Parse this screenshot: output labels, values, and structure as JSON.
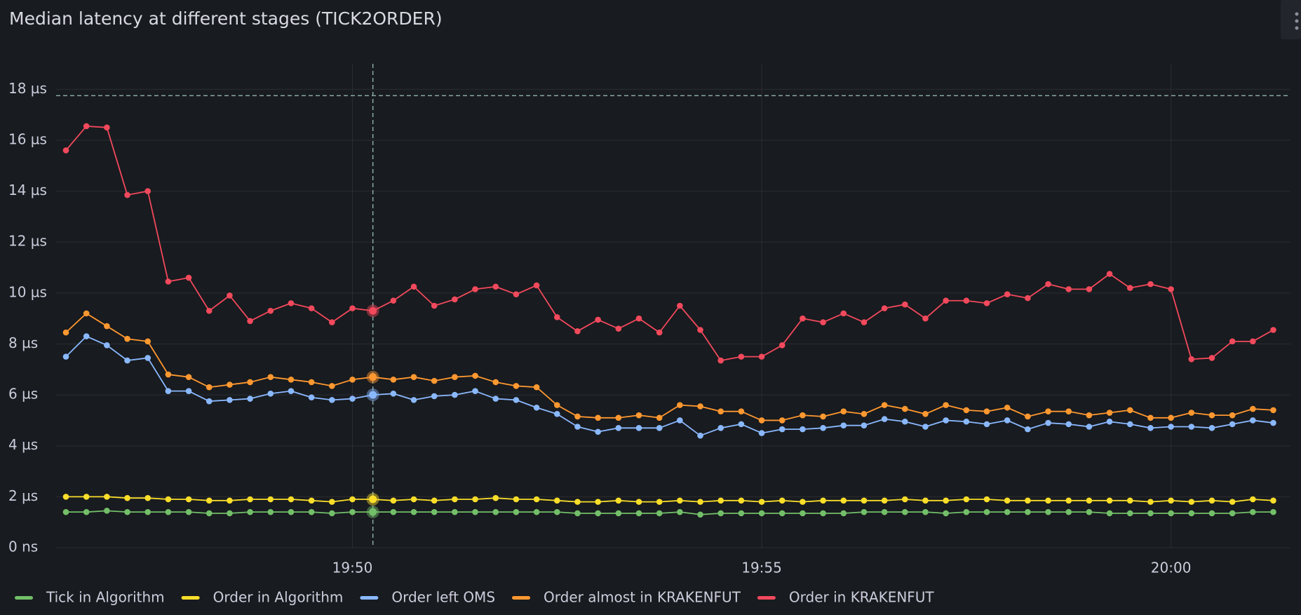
{
  "chart_data": {
    "type": "line",
    "title": "Median latency at different stages (TICK2ORDER)",
    "x": [
      1186.5,
      1186.75,
      1187,
      1187.25,
      1187.5,
      1187.75,
      1188,
      1188.25,
      1188.5,
      1188.75,
      1189,
      1189.25,
      1189.5,
      1189.75,
      1190,
      1190.25,
      1190.5,
      1190.75,
      1191,
      1191.25,
      1191.5,
      1191.75,
      1192,
      1192.25,
      1192.5,
      1192.75,
      1193,
      1193.25,
      1193.5,
      1193.75,
      1194,
      1194.25,
      1194.5,
      1194.75,
      1195,
      1195.25,
      1195.5,
      1195.75,
      1196,
      1196.25,
      1196.5,
      1196.75,
      1197,
      1197.25,
      1197.5,
      1197.75,
      1198,
      1198.25,
      1198.5,
      1198.75,
      1199,
      1199.25,
      1199.5,
      1199.75,
      1200,
      1200.25,
      1200.5,
      1200.75,
      1201,
      1201.25
    ],
    "xlim": [
      1186.38,
      1201.46
    ],
    "xticks": [
      {
        "value": 1190,
        "label": "19:50"
      },
      {
        "value": 1195,
        "label": "19:55"
      },
      {
        "value": 1200,
        "label": "20:00"
      }
    ],
    "ylim": [
      0,
      19
    ],
    "yticks": [
      {
        "value": 0,
        "label": "0 ns"
      },
      {
        "value": 2,
        "label": "2 µs"
      },
      {
        "value": 4,
        "label": "4 µs"
      },
      {
        "value": 6,
        "label": "6 µs"
      },
      {
        "value": 8,
        "label": "8 µs"
      },
      {
        "value": 10,
        "label": "10 µs"
      },
      {
        "value": 12,
        "label": "12 µs"
      },
      {
        "value": 14,
        "label": "14 µs"
      },
      {
        "value": 16,
        "label": "16 µs"
      },
      {
        "value": 18,
        "label": "18 µs"
      }
    ],
    "grid": true,
    "threshold": 17.75,
    "hover_x": 1190.25,
    "series": [
      {
        "name": "Tick in Algorithm",
        "color": "#73bf69",
        "values": [
          1.4,
          1.4,
          1.45,
          1.4,
          1.4,
          1.4,
          1.4,
          1.35,
          1.35,
          1.4,
          1.4,
          1.4,
          1.4,
          1.35,
          1.4,
          1.4,
          1.4,
          1.4,
          1.4,
          1.4,
          1.4,
          1.4,
          1.4,
          1.4,
          1.4,
          1.35,
          1.35,
          1.35,
          1.35,
          1.35,
          1.4,
          1.3,
          1.35,
          1.35,
          1.35,
          1.35,
          1.35,
          1.35,
          1.35,
          1.4,
          1.4,
          1.4,
          1.4,
          1.35,
          1.4,
          1.4,
          1.4,
          1.4,
          1.4,
          1.4,
          1.4,
          1.35,
          1.35,
          1.35,
          1.35,
          1.35,
          1.35,
          1.35,
          1.4,
          1.4
        ]
      },
      {
        "name": "Order in Algorithm",
        "color": "#fade2a",
        "values": [
          2,
          2,
          2,
          1.95,
          1.95,
          1.9,
          1.9,
          1.85,
          1.85,
          1.9,
          1.9,
          1.9,
          1.85,
          1.8,
          1.9,
          1.9,
          1.85,
          1.9,
          1.85,
          1.9,
          1.9,
          1.95,
          1.9,
          1.9,
          1.85,
          1.8,
          1.8,
          1.85,
          1.8,
          1.8,
          1.85,
          1.8,
          1.85,
          1.85,
          1.8,
          1.85,
          1.8,
          1.85,
          1.85,
          1.85,
          1.85,
          1.9,
          1.85,
          1.85,
          1.9,
          1.9,
          1.85,
          1.85,
          1.85,
          1.85,
          1.85,
          1.85,
          1.85,
          1.8,
          1.85,
          1.8,
          1.85,
          1.8,
          1.9,
          1.85
        ]
      },
      {
        "name": "Order left OMS",
        "color": "#8ab8ff",
        "values": [
          7.5,
          8.3,
          7.95,
          7.35,
          7.45,
          6.15,
          6.15,
          5.75,
          5.8,
          5.85,
          6.05,
          6.15,
          5.9,
          5.8,
          5.85,
          6,
          6.05,
          5.8,
          5.95,
          6,
          6.15,
          5.85,
          5.8,
          5.5,
          5.25,
          4.75,
          4.55,
          4.7,
          4.7,
          4.7,
          5,
          4.4,
          4.7,
          4.85,
          4.5,
          4.65,
          4.65,
          4.7,
          4.8,
          4.8,
          5.05,
          4.95,
          4.75,
          5,
          4.95,
          4.85,
          5,
          4.65,
          4.9,
          4.85,
          4.75,
          4.95,
          4.85,
          4.7,
          4.75,
          4.75,
          4.7,
          4.85,
          5,
          4.9
        ]
      },
      {
        "name": "Order almost in KRAKENFUT",
        "color": "#ff9830",
        "values": [
          8.45,
          9.2,
          8.7,
          8.2,
          8.1,
          6.8,
          6.7,
          6.3,
          6.4,
          6.5,
          6.7,
          6.6,
          6.5,
          6.35,
          6.6,
          6.7,
          6.6,
          6.7,
          6.55,
          6.7,
          6.75,
          6.5,
          6.35,
          6.3,
          5.6,
          5.15,
          5.1,
          5.1,
          5.2,
          5.1,
          5.6,
          5.55,
          5.35,
          5.35,
          5,
          5,
          5.2,
          5.15,
          5.35,
          5.25,
          5.6,
          5.45,
          5.25,
          5.6,
          5.4,
          5.35,
          5.5,
          5.15,
          5.35,
          5.35,
          5.2,
          5.3,
          5.4,
          5.1,
          5.1,
          5.3,
          5.2,
          5.2,
          5.45,
          5.4
        ]
      },
      {
        "name": "Order in KRAKENFUT",
        "color": "#f2495c",
        "values": [
          15.6,
          16.55,
          16.5,
          13.85,
          14,
          10.45,
          10.6,
          9.3,
          9.9,
          8.9,
          9.3,
          9.6,
          9.4,
          8.85,
          9.4,
          9.3,
          9.7,
          10.25,
          9.5,
          9.75,
          10.15,
          10.25,
          9.95,
          10.3,
          9.05,
          8.5,
          8.95,
          8.6,
          9,
          8.45,
          9.5,
          8.55,
          7.35,
          7.5,
          7.5,
          7.95,
          9,
          8.85,
          9.2,
          8.85,
          9.4,
          9.55,
          9,
          9.7,
          9.7,
          9.6,
          9.95,
          9.8,
          10.35,
          10.15,
          10.15,
          10.75,
          10.2,
          10.35,
          10.15,
          7.4,
          7.45,
          8.1,
          8.1,
          8.55
        ]
      }
    ]
  }
}
